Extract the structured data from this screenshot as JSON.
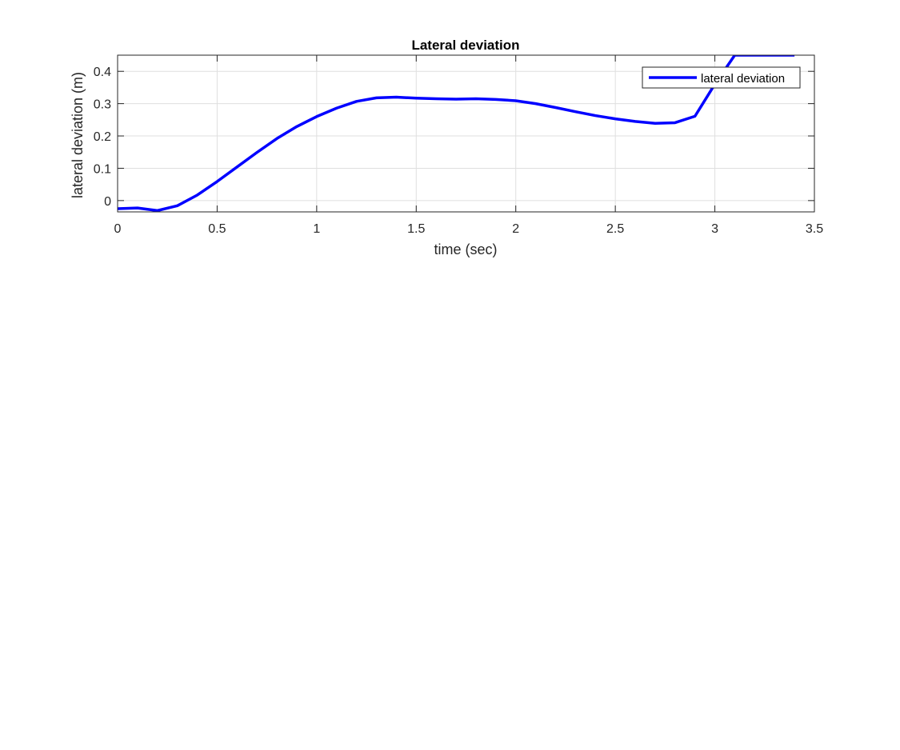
{
  "chart_data": {
    "type": "line",
    "title": "Lateral deviation",
    "xlabel": "time (sec)",
    "ylabel": "lateral deviation (m)",
    "xlim": [
      0,
      3.5
    ],
    "ylim": [
      -0.035,
      0.45
    ],
    "xticks": [
      0,
      0.5,
      1,
      1.5,
      2,
      2.5,
      3,
      3.5
    ],
    "xtick_labels": [
      "0",
      "0.5",
      "1",
      "1.5",
      "2",
      "2.5",
      "3",
      "3.5"
    ],
    "yticks": [
      0,
      0.1,
      0.2,
      0.3,
      0.4
    ],
    "ytick_labels": [
      "0",
      "0.1",
      "0.2",
      "0.3",
      "0.4"
    ],
    "grid": true,
    "legend_position": "top-right",
    "series": [
      {
        "name": "lateral deviation",
        "color": "#0000ff",
        "x": [
          0,
          0.1,
          0.2,
          0.3,
          0.4,
          0.5,
          0.6,
          0.7,
          0.8,
          0.9,
          1.0,
          1.1,
          1.2,
          1.3,
          1.4,
          1.5,
          1.6,
          1.7,
          1.8,
          1.9,
          2.0,
          2.1,
          2.2,
          2.3,
          2.4,
          2.5,
          2.6,
          2.7,
          2.8,
          2.9,
          3.0,
          3.1,
          3.2,
          3.3,
          3.4
        ],
        "y": [
          -0.025,
          -0.023,
          -0.031,
          -0.016,
          0.017,
          0.059,
          0.104,
          0.149,
          0.192,
          0.229,
          0.26,
          0.286,
          0.307,
          0.318,
          0.32,
          0.317,
          0.315,
          0.314,
          0.315,
          0.313,
          0.309,
          0.3,
          0.288,
          0.275,
          0.263,
          0.253,
          0.245,
          0.239,
          0.241,
          0.261,
          0.36,
          0.45,
          0.45,
          0.45,
          0.45
        ]
      }
    ]
  }
}
